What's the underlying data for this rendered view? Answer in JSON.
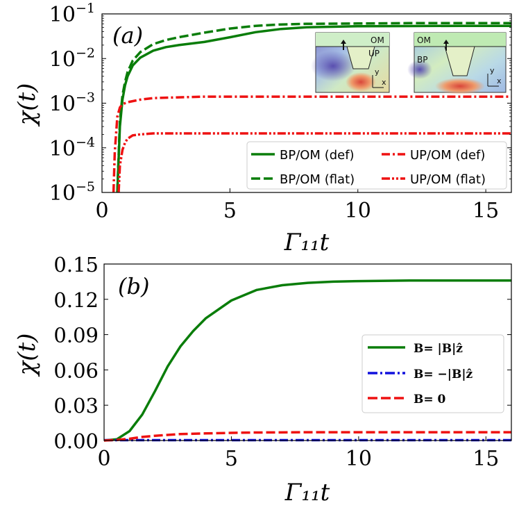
{
  "chart_data": [
    {
      "type": "line",
      "panel_label": "(a)",
      "yscale": "log",
      "xlabel": "Γ₁₁t",
      "ylabel": "χ(t)",
      "xlim": [
        0,
        16
      ],
      "ylim": [
        1e-05,
        0.1
      ],
      "xticks": [
        0,
        5,
        10,
        15
      ],
      "yticks": [
        {
          "value": 0.1,
          "base": "10",
          "exp": "−1"
        },
        {
          "value": 0.01,
          "base": "10",
          "exp": "−2"
        },
        {
          "value": 0.001,
          "base": "10",
          "exp": "−3"
        },
        {
          "value": 0.0001,
          "base": "10",
          "exp": "−4"
        },
        {
          "value": 1e-05,
          "base": "10",
          "exp": "−5"
        }
      ],
      "series": [
        {
          "name": "BP/OM (def)",
          "color": "#0a7d0a",
          "style": "solid",
          "x": [
            0.6,
            0.7,
            0.8,
            0.9,
            1.0,
            1.2,
            1.5,
            2.0,
            2.5,
            3,
            4,
            5,
            6,
            7,
            8,
            10,
            12,
            14,
            16
          ],
          "y": [
            1e-05,
            0.0003,
            0.0012,
            0.0025,
            0.004,
            0.007,
            0.0105,
            0.015,
            0.018,
            0.02,
            0.0235,
            0.03,
            0.039,
            0.046,
            0.05,
            0.053,
            0.0535,
            0.054,
            0.054
          ]
        },
        {
          "name": "BP/OM (flat)",
          "color": "#0a7d0a",
          "style": "dashed",
          "x": [
            0.6,
            0.7,
            0.8,
            0.9,
            1.0,
            1.2,
            1.5,
            2.0,
            2.5,
            3,
            4,
            5,
            6,
            7,
            8,
            10,
            12,
            14,
            16
          ],
          "y": [
            1e-05,
            0.0004,
            0.0015,
            0.003,
            0.005,
            0.009,
            0.014,
            0.021,
            0.026,
            0.03,
            0.038,
            0.047,
            0.054,
            0.058,
            0.06,
            0.061,
            0.062,
            0.062,
            0.062
          ]
        },
        {
          "name": "UP/OM (def)",
          "color": "#ee1111",
          "style": "dashdot",
          "x": [
            0.45,
            0.5,
            0.6,
            0.7,
            0.8,
            1.0,
            1.5,
            2.0,
            3,
            4,
            6,
            8,
            10,
            16
          ],
          "y": [
            1e-05,
            8e-05,
            0.0005,
            0.0008,
            0.00095,
            0.00105,
            0.0012,
            0.0013,
            0.00135,
            0.0014,
            0.0014,
            0.0014,
            0.0014,
            0.0014
          ]
        },
        {
          "name": "UP/OM (flat)",
          "color": "#ee1111",
          "style": "dashdotdot",
          "x": [
            0.65,
            0.7,
            0.8,
            0.9,
            1.0,
            1.2,
            1.5,
            2.0,
            2.5,
            3,
            4,
            6,
            8,
            16
          ],
          "y": [
            1e-05,
            4e-05,
            9e-05,
            0.00013,
            0.00016,
            0.00019,
            0.0002,
            0.00021,
            0.00021,
            0.00021,
            0.00021,
            0.00021,
            0.00021,
            0.00021
          ]
        }
      ],
      "legend": {
        "placement": "lower-right",
        "columns": 2
      },
      "insets": [
        {
          "labels": [
            "OM",
            "UP"
          ],
          "axes": [
            "y",
            "x"
          ]
        },
        {
          "labels": [
            "OM",
            "BP"
          ],
          "axes": [
            "y",
            "x"
          ]
        }
      ]
    },
    {
      "type": "line",
      "panel_label": "(b)",
      "yscale": "linear",
      "xlabel": "Γ₁₁t",
      "ylabel": "χ(t)",
      "xlim": [
        0,
        16
      ],
      "ylim": [
        0,
        0.15
      ],
      "xticks": [
        0,
        5,
        10,
        15
      ],
      "yticks": [
        "0.00",
        "0.03",
        "0.06",
        "0.09",
        "0.12",
        "0.15"
      ],
      "series": [
        {
          "name": "B= |B|ẑ",
          "color": "#0a7d0a",
          "style": "solid",
          "x": [
            0,
            0.5,
            1,
            1.5,
            2,
            2.5,
            3,
            3.5,
            4,
            5,
            6,
            7,
            8,
            9,
            10,
            12,
            14,
            16
          ],
          "y": [
            0,
            0.001,
            0.008,
            0.022,
            0.042,
            0.063,
            0.08,
            0.093,
            0.104,
            0.119,
            0.128,
            0.132,
            0.134,
            0.135,
            0.1355,
            0.136,
            0.136,
            0.136
          ]
        },
        {
          "name": "B= −|B|ẑ",
          "color": "#1111dd",
          "style": "dashdot",
          "x": [
            0,
            16
          ],
          "y": [
            0.0003,
            0.0003
          ]
        },
        {
          "name": "B= 0",
          "color": "#ee1111",
          "style": "dashed",
          "x": [
            0,
            0.5,
            1,
            1.5,
            2,
            3,
            4,
            5,
            6,
            8,
            10,
            16
          ],
          "y": [
            0,
            0.0005,
            0.0015,
            0.003,
            0.004,
            0.0055,
            0.006,
            0.0065,
            0.0068,
            0.007,
            0.007,
            0.007
          ]
        }
      ],
      "legend": {
        "placement": "center-right",
        "columns": 1
      }
    }
  ]
}
